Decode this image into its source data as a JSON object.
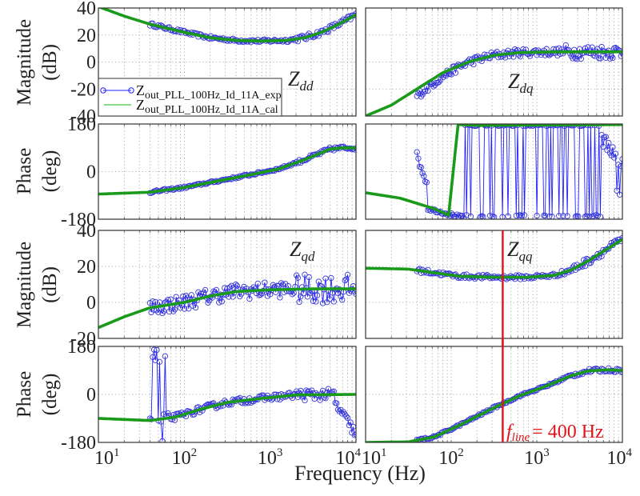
{
  "chart_data": {
    "type": "line",
    "title": "",
    "xlabel": "Frequency  (Hz)",
    "xscale": "log",
    "xlim": [
      10,
      10000
    ],
    "x_tick_labels": [
      {
        "base": "10",
        "exp": "1"
      },
      {
        "base": "10",
        "exp": "2"
      },
      {
        "base": "10",
        "exp": "3"
      },
      {
        "base": "10",
        "exp": "4"
      }
    ],
    "grid": true,
    "colors": {
      "exp": "#3535d8",
      "cal": "#1a9a1a",
      "marker_line": "#2121ff",
      "fline": "#e0141a",
      "legend_cal": "#8ad88a"
    },
    "legend": {
      "placement": "inside-bottom-left of Zdd magnitude panel",
      "entries": [
        {
          "base": "Z",
          "sub": "out_PLL_100Hz_Id_11A_exp",
          "style": "line-with-circle-markers"
        },
        {
          "base": "Z",
          "sub": "out_PLL_100Hz_Id_11A_cal",
          "style": "thick-line"
        }
      ]
    },
    "y_axis_labels": {
      "magnitude": [
        "Magnitude",
        "(dB)"
      ],
      "phase": [
        "Phase",
        "(deg)"
      ]
    },
    "annotation_fline": {
      "base": "f",
      "sub": "line",
      "text": "= 400 Hz",
      "x_hz": 400
    },
    "panels": [
      {
        "id": "zdd-mag",
        "row": 0,
        "col": 0,
        "quantity": "magnitude",
        "label": {
          "base": "Z",
          "sub": "dd"
        },
        "ylim": [
          -40,
          40
        ],
        "yticks": [
          "40",
          "20",
          "0",
          "-20",
          "-40"
        ],
        "cal": [
          [
            1,
            41
          ],
          [
            1.3,
            34
          ],
          [
            1.6,
            28
          ],
          [
            2,
            22
          ],
          [
            2.3,
            18
          ],
          [
            2.6,
            16
          ],
          [
            2.9,
            15.5
          ],
          [
            3.2,
            16
          ],
          [
            3.4,
            18
          ],
          [
            3.6,
            22
          ],
          [
            3.8,
            28
          ],
          [
            4,
            35
          ]
        ],
        "exp_range": [
          1.6,
          4
        ],
        "exp_noise": 1.2,
        "exp_count": 150,
        "exp_mode": "follow"
      },
      {
        "id": "zdq-mag",
        "row": 0,
        "col": 1,
        "quantity": "magnitude",
        "label": {
          "base": "Z",
          "sub": "dq"
        },
        "ylim": [
          -40,
          40
        ],
        "yticks": [],
        "cal": [
          [
            1,
            -40
          ],
          [
            1.3,
            -32
          ],
          [
            1.6,
            -20
          ],
          [
            1.9,
            -8
          ],
          [
            2.2,
            0
          ],
          [
            2.5,
            5
          ],
          [
            2.8,
            7
          ],
          [
            3.2,
            7.5
          ],
          [
            3.6,
            7.5
          ],
          [
            4,
            7.5
          ]
        ],
        "exp_range": [
          1.6,
          4
        ],
        "exp_noise": 3,
        "exp_count": 150,
        "exp_mode": "follow-offset",
        "exp_offset_low": -5
      },
      {
        "id": "zdd-phase",
        "row": 1,
        "col": 0,
        "quantity": "phase",
        "label": null,
        "ylim": [
          -180,
          180
        ],
        "yticks": [
          "180",
          "0",
          "-180"
        ],
        "cal": [
          [
            1,
            -85
          ],
          [
            1.6,
            -78
          ],
          [
            2,
            -60
          ],
          [
            2.4,
            -35
          ],
          [
            2.8,
            -10
          ],
          [
            3.1,
            10
          ],
          [
            3.4,
            45
          ],
          [
            3.7,
            85
          ],
          [
            3.85,
            90
          ],
          [
            4,
            90
          ]
        ],
        "exp_range": [
          1.6,
          4
        ],
        "exp_noise": 4,
        "exp_count": 150,
        "exp_mode": "follow"
      },
      {
        "id": "zdq-phase",
        "row": 1,
        "col": 1,
        "quantity": "phase",
        "label": null,
        "ylim": [
          -180,
          180
        ],
        "yticks": [],
        "cal": [
          [
            1,
            -80
          ],
          [
            1.4,
            -100
          ],
          [
            1.8,
            -140
          ],
          [
            1.97,
            -165
          ],
          [
            2.08,
            178
          ],
          [
            2.3,
            175
          ],
          [
            3,
            176
          ],
          [
            4,
            178
          ]
        ],
        "exp_range": [
          1.6,
          4
        ],
        "exp_noise": 6,
        "exp_count": 150,
        "exp_mode": "wrap"
      },
      {
        "id": "zqd-mag",
        "row": 2,
        "col": 0,
        "quantity": "magnitude",
        "label": {
          "base": "Z",
          "sub": "qd"
        },
        "ylim": [
          -20,
          40
        ],
        "yticks": [
          "40",
          "20",
          "0",
          "-20"
        ],
        "cal": [
          [
            1,
            -14
          ],
          [
            1.3,
            -8
          ],
          [
            1.6,
            -3
          ],
          [
            2,
            0
          ],
          [
            2.3,
            3.5
          ],
          [
            2.6,
            6
          ],
          [
            3,
            7
          ],
          [
            3.5,
            7.5
          ],
          [
            4,
            7.5
          ]
        ],
        "exp_range": [
          1.6,
          4
        ],
        "exp_noise": 4.5,
        "exp_count": 150,
        "exp_mode": "follow"
      },
      {
        "id": "zqq-mag",
        "row": 2,
        "col": 1,
        "quantity": "magnitude",
        "label": {
          "base": "Z",
          "sub": "qq"
        },
        "ylim": [
          -20,
          40
        ],
        "yticks": [],
        "cal": [
          [
            1,
            19
          ],
          [
            1.5,
            18.5
          ],
          [
            1.8,
            16.5
          ],
          [
            2.1,
            14.5
          ],
          [
            2.5,
            14
          ],
          [
            2.9,
            14
          ],
          [
            3.2,
            15
          ],
          [
            3.4,
            18
          ],
          [
            3.6,
            23
          ],
          [
            3.8,
            29
          ],
          [
            4,
            35
          ]
        ],
        "exp_range": [
          1.6,
          4
        ],
        "exp_noise": 1.2,
        "exp_count": 150,
        "exp_mode": "follow"
      },
      {
        "id": "zqd-phase",
        "row": 3,
        "col": 0,
        "quantity": "phase",
        "label": null,
        "ylim": [
          -180,
          180
        ],
        "yticks": [
          "180",
          "0",
          "-180"
        ],
        "cal": [
          [
            1,
            -90
          ],
          [
            1.6,
            -98
          ],
          [
            1.9,
            -85
          ],
          [
            2.2,
            -55
          ],
          [
            2.5,
            -30
          ],
          [
            2.9,
            -15
          ],
          [
            3.3,
            -2
          ],
          [
            4,
            0
          ]
        ],
        "exp_range": [
          1.6,
          4
        ],
        "exp_noise": 12,
        "exp_count": 150,
        "exp_mode": "qd-phase"
      },
      {
        "id": "zqq-phase",
        "row": 3,
        "col": 1,
        "quantity": "phase",
        "label": null,
        "ylim": [
          -180,
          180
        ],
        "yticks": [],
        "cal": [
          [
            1,
            -180
          ],
          [
            1.5,
            -178
          ],
          [
            1.8,
            -160
          ],
          [
            2.1,
            -115
          ],
          [
            2.5,
            -50
          ],
          [
            2.8,
            -5
          ],
          [
            3.1,
            30
          ],
          [
            3.4,
            70
          ],
          [
            3.6,
            88
          ],
          [
            3.8,
            92
          ],
          [
            4,
            90
          ]
        ],
        "exp_range": [
          1.6,
          4
        ],
        "exp_noise": 4,
        "exp_count": 150,
        "exp_mode": "follow"
      }
    ]
  }
}
